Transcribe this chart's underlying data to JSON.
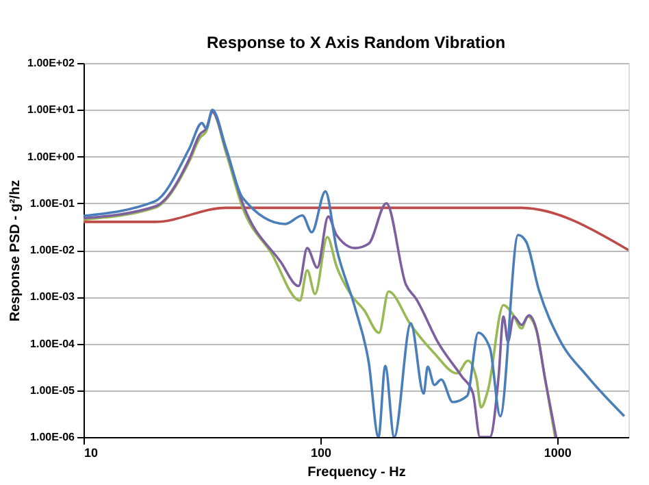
{
  "chart_data": {
    "type": "line",
    "title": "Response to X Axis Random Vibration",
    "xlabel": "Frequency - Hz",
    "ylabel": "Response PSD - g²/hz",
    "log": "xy",
    "grid": "y",
    "line_style": "solid",
    "marker": "none",
    "xlim": [
      10,
      2000
    ],
    "xticks": [
      10,
      100,
      1000
    ],
    "ylim": [
      1e-06,
      100
    ],
    "yticks": [
      {
        "value": 1e-06,
        "label": "1.00E-06"
      },
      {
        "value": 1e-05,
        "label": "1.00E-05"
      },
      {
        "value": 0.0001,
        "label": "1.00E-04"
      },
      {
        "value": 0.001,
        "label": "1.00E-03"
      },
      {
        "value": 0.01,
        "label": "1.00E-02"
      },
      {
        "value": 0.1,
        "label": "1.00E-01"
      },
      {
        "value": 1,
        "label": "1.00E+00"
      },
      {
        "value": 10,
        "label": "1.00E+01"
      },
      {
        "value": 100,
        "label": "1.00E+02"
      }
    ],
    "series": [
      {
        "color": "#be4b48",
        "x": [
          10,
          20,
          40,
          700,
          2000
        ],
        "values": [
          0.04,
          0.04,
          0.08,
          0.08,
          0.01
        ]
      },
      {
        "color": "#98b954",
        "x": [
          10,
          20,
          28,
          31,
          33,
          35,
          40,
          47,
          62,
          82,
          88,
          95,
          107,
          117,
          134,
          153,
          177,
          194,
          241,
          302,
          378,
          420,
          457,
          477,
          510,
          593,
          650,
          708,
          750,
          815,
          890,
          980
        ],
        "values": [
          0.045,
          0.08,
          0.8,
          2.5,
          3.5,
          9,
          1.2,
          0.08,
          0.0087,
          0.00083,
          0.0037,
          0.00115,
          0.019,
          0.0045,
          0.00115,
          0.00052,
          0.00017,
          0.0013,
          0.00025,
          6.3e-05,
          2.3e-05,
          4.3e-05,
          1.7e-05,
          4.3e-06,
          1e-05,
          0.00066,
          0.00042,
          0.00021,
          0.00038,
          0.0002,
          1.7e-05,
          1e-06
        ]
      },
      {
        "color": "#7d5fa0",
        "x": [
          10,
          20,
          28,
          31,
          33,
          35,
          40,
          47,
          68,
          81,
          88,
          97,
          108,
          117,
          140,
          160,
          190,
          230,
          253,
          316,
          395,
          441,
          472,
          520,
          566,
          593,
          620,
          655,
          708,
          760,
          815,
          890,
          990
        ],
        "values": [
          0.048,
          0.085,
          0.9,
          3,
          4,
          9,
          1.4,
          0.1,
          0.0056,
          0.0017,
          0.011,
          0.0042,
          0.052,
          0.021,
          0.011,
          0.0137,
          0.1,
          0.0018,
          0.00093,
          0.0001,
          2e-05,
          8.6e-06,
          1e-06,
          1e-06,
          2e-05,
          0.00038,
          0.00011,
          0.00038,
          0.00025,
          0.0004,
          0.00021,
          1.7e-05,
          1e-06
        ]
      },
      {
        "color": "#4a7ebb",
        "x": [
          10,
          20,
          28,
          31.6,
          33,
          35,
          40,
          47,
          71,
          84,
          92,
          105,
          117,
          140,
          160,
          176,
          188,
          205,
          241,
          273,
          284,
          303,
          324,
          362,
          417,
          464,
          520,
          575,
          684,
          740,
          837,
          1020,
          1340,
          1920
        ],
        "values": [
          0.054,
          0.11,
          1.5,
          5.2,
          4,
          10,
          1.5,
          0.13,
          0.036,
          0.055,
          0.024,
          0.18,
          0.011,
          0.00059,
          4e-05,
          1e-06,
          3.3e-05,
          1e-06,
          0.00027,
          8.5e-06,
          3.2e-05,
          1.3e-05,
          1.7e-05,
          5.6e-06,
          7.6e-06,
          0.00017,
          8e-05,
          2.8e-06,
          0.021,
          0.015,
          0.0014,
          0.000125,
          2e-05,
          2.8e-06
        ]
      }
    ]
  }
}
